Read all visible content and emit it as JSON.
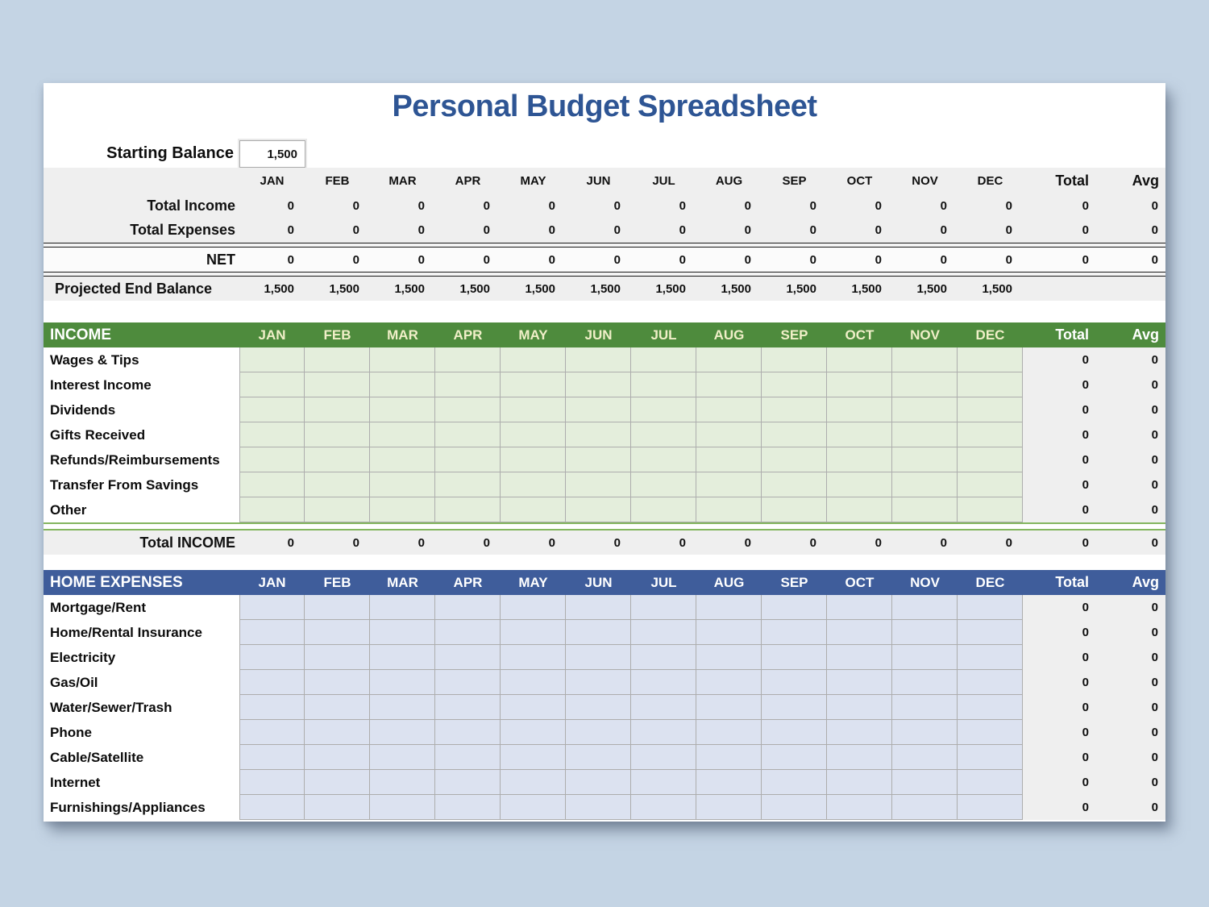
{
  "title": "Personal Budget Spreadsheet",
  "labels": {
    "total": "Total",
    "avg": "Avg"
  },
  "months": [
    "JAN",
    "FEB",
    "MAR",
    "APR",
    "MAY",
    "JUN",
    "JUL",
    "AUG",
    "SEP",
    "OCT",
    "NOV",
    "DEC"
  ],
  "starting_balance": {
    "label": "Starting Balance",
    "value": "1,500"
  },
  "summary": {
    "rows": [
      {
        "label": "Total Income",
        "values": [
          "0",
          "0",
          "0",
          "0",
          "0",
          "0",
          "0",
          "0",
          "0",
          "0",
          "0",
          "0"
        ],
        "total": "0",
        "avg": "0",
        "comment": false
      },
      {
        "label": "Total Expenses",
        "values": [
          "0",
          "0",
          "0",
          "0",
          "0",
          "0",
          "0",
          "0",
          "0",
          "0",
          "0",
          "0"
        ],
        "total": "0",
        "avg": "0",
        "comment": false
      },
      {
        "label": "NET",
        "values": [
          "0",
          "0",
          "0",
          "0",
          "0",
          "0",
          "0",
          "0",
          "0",
          "0",
          "0",
          "0"
        ],
        "total": "0",
        "avg": "0",
        "comment": true
      }
    ],
    "projected": {
      "label": "Projected End Balance",
      "values": [
        "1,500",
        "1,500",
        "1,500",
        "1,500",
        "1,500",
        "1,500",
        "1,500",
        "1,500",
        "1,500",
        "1,500",
        "1,500",
        "1,500"
      ],
      "total": "",
      "avg": ""
    }
  },
  "income": {
    "header": "INCOME",
    "rows": [
      {
        "label": "Wages & Tips",
        "values": [
          "",
          "",
          "",
          "",
          "",
          "",
          "",
          "",
          "",
          "",
          "",
          ""
        ],
        "total": "0",
        "avg": "0"
      },
      {
        "label": "Interest Income",
        "values": [
          "",
          "",
          "",
          "",
          "",
          "",
          "",
          "",
          "",
          "",
          "",
          ""
        ],
        "total": "0",
        "avg": "0"
      },
      {
        "label": "Dividends",
        "values": [
          "",
          "",
          "",
          "",
          "",
          "",
          "",
          "",
          "",
          "",
          "",
          ""
        ],
        "total": "0",
        "avg": "0"
      },
      {
        "label": "Gifts Received",
        "values": [
          "",
          "",
          "",
          "",
          "",
          "",
          "",
          "",
          "",
          "",
          "",
          ""
        ],
        "total": "0",
        "avg": "0"
      },
      {
        "label": "Refunds/Reimbursements",
        "values": [
          "",
          "",
          "",
          "",
          "",
          "",
          "",
          "",
          "",
          "",
          "",
          ""
        ],
        "total": "0",
        "avg": "0"
      },
      {
        "label": "Transfer From Savings",
        "values": [
          "",
          "",
          "",
          "",
          "",
          "",
          "",
          "",
          "",
          "",
          "",
          ""
        ],
        "total": "0",
        "avg": "0"
      },
      {
        "label": "Other",
        "values": [
          "",
          "",
          "",
          "",
          "",
          "",
          "",
          "",
          "",
          "",
          "",
          ""
        ],
        "total": "0",
        "avg": "0"
      }
    ],
    "total_row": {
      "label": "Total INCOME",
      "values": [
        "0",
        "0",
        "0",
        "0",
        "0",
        "0",
        "0",
        "0",
        "0",
        "0",
        "0",
        "0"
      ],
      "total": "0",
      "avg": "0"
    }
  },
  "home_expenses": {
    "header": "HOME EXPENSES",
    "rows": [
      {
        "label": "Mortgage/Rent",
        "values": [
          "",
          "",
          "",
          "",
          "",
          "",
          "",
          "",
          "",
          "",
          "",
          ""
        ],
        "total": "0",
        "avg": "0"
      },
      {
        "label": "Home/Rental Insurance",
        "values": [
          "",
          "",
          "",
          "",
          "",
          "",
          "",
          "",
          "",
          "",
          "",
          ""
        ],
        "total": "0",
        "avg": "0"
      },
      {
        "label": "Electricity",
        "values": [
          "",
          "",
          "",
          "",
          "",
          "",
          "",
          "",
          "",
          "",
          "",
          ""
        ],
        "total": "0",
        "avg": "0"
      },
      {
        "label": "Gas/Oil",
        "values": [
          "",
          "",
          "",
          "",
          "",
          "",
          "",
          "",
          "",
          "",
          "",
          ""
        ],
        "total": "0",
        "avg": "0"
      },
      {
        "label": "Water/Sewer/Trash",
        "values": [
          "",
          "",
          "",
          "",
          "",
          "",
          "",
          "",
          "",
          "",
          "",
          ""
        ],
        "total": "0",
        "avg": "0"
      },
      {
        "label": "Phone",
        "values": [
          "",
          "",
          "",
          "",
          "",
          "",
          "",
          "",
          "",
          "",
          "",
          ""
        ],
        "total": "0",
        "avg": "0"
      },
      {
        "label": "Cable/Satellite",
        "values": [
          "",
          "",
          "",
          "",
          "",
          "",
          "",
          "",
          "",
          "",
          "",
          ""
        ],
        "total": "0",
        "avg": "0"
      },
      {
        "label": "Internet",
        "values": [
          "",
          "",
          "",
          "",
          "",
          "",
          "",
          "",
          "",
          "",
          "",
          ""
        ],
        "total": "0",
        "avg": "0"
      },
      {
        "label": "Furnishings/Appliances",
        "values": [
          "",
          "",
          "",
          "",
          "",
          "",
          "",
          "",
          "",
          "",
          "",
          ""
        ],
        "total": "0",
        "avg": "0"
      }
    ]
  },
  "colors": {
    "page_bg": "#C4D4E4",
    "title_blue": "#2E5594",
    "band_gray": "#EFEFEF",
    "income_green": "#4E8B3D",
    "income_cell": "#E4EEDC",
    "income_month_text": "#F0EFC8",
    "expenses_blue": "#3F5D9B",
    "expense_cell": "#DCE2F0",
    "sep_green": "#84B65F",
    "grid_line": "#ADADAD",
    "marker_red": "#D93025"
  }
}
